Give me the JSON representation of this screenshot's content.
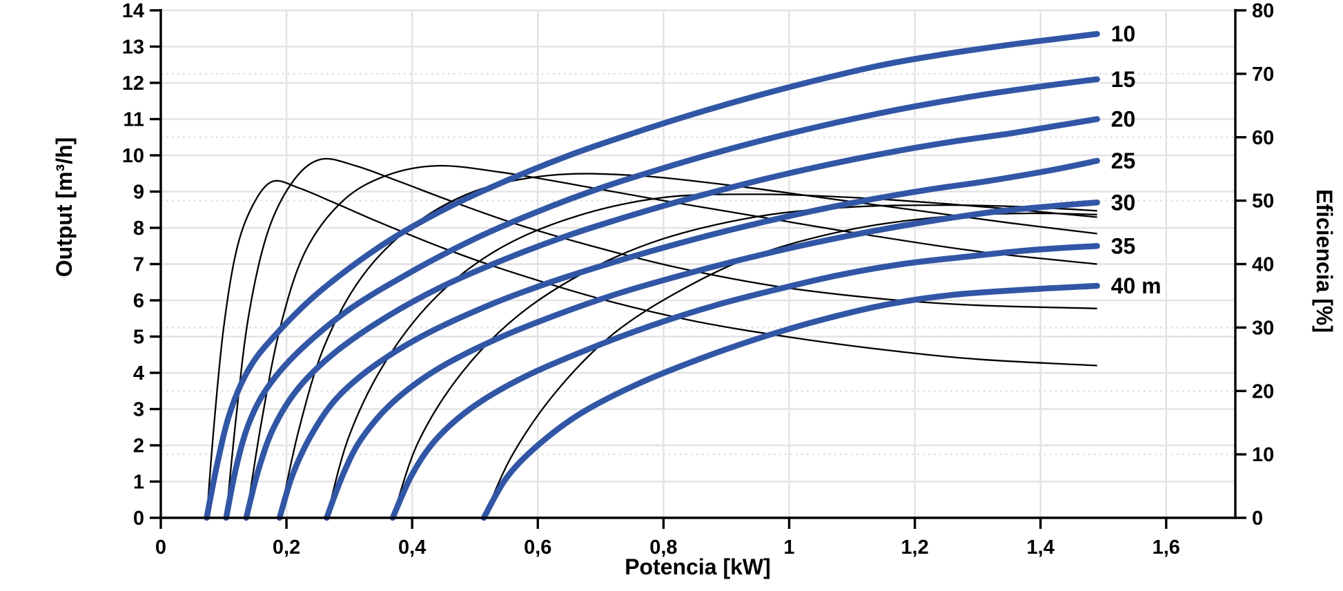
{
  "chart_data": {
    "type": "line",
    "xlabel": "Potencia [kW]",
    "ylabel_left": "Output [m³/h]",
    "ylabel_right": "Eficiencia [%]",
    "xlim": [
      0,
      1.71
    ],
    "ylim_left": [
      0,
      14
    ],
    "ylim_right": [
      0,
      80
    ],
    "grid": "on",
    "decimal_separator": ",",
    "x_ticks": [
      {
        "v": 0.0,
        "label": "0"
      },
      {
        "v": 0.2,
        "label": "0,2"
      },
      {
        "v": 0.4,
        "label": "0,4"
      },
      {
        "v": 0.6,
        "label": "0,6"
      },
      {
        "v": 0.8,
        "label": "0,8"
      },
      {
        "v": 1.0,
        "label": "1"
      },
      {
        "v": 1.2,
        "label": "1,2"
      },
      {
        "v": 1.4,
        "label": "1,4"
      },
      {
        "v": 1.6,
        "label": "1,6"
      }
    ],
    "y_ticks_left": [
      {
        "v": 0,
        "label": "0"
      },
      {
        "v": 1,
        "label": "1"
      },
      {
        "v": 2,
        "label": "2"
      },
      {
        "v": 3,
        "label": "3"
      },
      {
        "v": 4,
        "label": "4"
      },
      {
        "v": 5,
        "label": "5"
      },
      {
        "v": 6,
        "label": "6"
      },
      {
        "v": 7,
        "label": "7"
      },
      {
        "v": 8,
        "label": "8"
      },
      {
        "v": 9,
        "label": "9"
      },
      {
        "v": 10,
        "label": "10"
      },
      {
        "v": 11,
        "label": "11"
      },
      {
        "v": 12,
        "label": "12"
      },
      {
        "v": 13,
        "label": "13"
      },
      {
        "v": 14,
        "label": "14"
      }
    ],
    "y_ticks_right": [
      {
        "v": 0,
        "label": "0"
      },
      {
        "v": 10,
        "label": "10"
      },
      {
        "v": 20,
        "label": "20"
      },
      {
        "v": 30,
        "label": "30"
      },
      {
        "v": 40,
        "label": "40"
      },
      {
        "v": 50,
        "label": "50"
      },
      {
        "v": 60,
        "label": "60"
      },
      {
        "v": 70,
        "label": "70"
      },
      {
        "v": 80,
        "label": "80"
      }
    ],
    "colors": {
      "power_curve": "#3156a5",
      "efficiency_curve": "#000000",
      "grid_solid": "#e3e3e3",
      "grid_dotted": "#dedede",
      "axis": "#000000"
    },
    "power_curves": [
      {
        "label": "10",
        "head_m": 10,
        "points": [
          [
            0.073,
            0
          ],
          [
            0.09,
            1.5
          ],
          [
            0.11,
            2.9
          ],
          [
            0.14,
            4.1
          ],
          [
            0.18,
            5.0
          ],
          [
            0.25,
            6.2
          ],
          [
            0.35,
            7.5
          ],
          [
            0.45,
            8.5
          ],
          [
            0.55,
            9.3
          ],
          [
            0.65,
            10.0
          ],
          [
            0.75,
            10.6
          ],
          [
            0.85,
            11.15
          ],
          [
            0.95,
            11.65
          ],
          [
            1.05,
            12.1
          ],
          [
            1.15,
            12.5
          ],
          [
            1.25,
            12.8
          ],
          [
            1.35,
            13.05
          ],
          [
            1.42,
            13.2
          ],
          [
            1.49,
            13.35
          ]
        ]
      },
      {
        "label": "15",
        "head_m": 15,
        "points": [
          [
            0.104,
            0
          ],
          [
            0.12,
            1.4
          ],
          [
            0.14,
            2.6
          ],
          [
            0.17,
            3.6
          ],
          [
            0.22,
            4.6
          ],
          [
            0.3,
            5.75
          ],
          [
            0.4,
            6.8
          ],
          [
            0.5,
            7.7
          ],
          [
            0.6,
            8.45
          ],
          [
            0.7,
            9.1
          ],
          [
            0.8,
            9.65
          ],
          [
            0.9,
            10.15
          ],
          [
            1.0,
            10.6
          ],
          [
            1.1,
            11.0
          ],
          [
            1.2,
            11.35
          ],
          [
            1.3,
            11.65
          ],
          [
            1.4,
            11.9
          ],
          [
            1.49,
            12.1
          ]
        ]
      },
      {
        "label": "20",
        "head_m": 20,
        "points": [
          [
            0.136,
            0
          ],
          [
            0.155,
            1.3
          ],
          [
            0.18,
            2.5
          ],
          [
            0.22,
            3.6
          ],
          [
            0.28,
            4.6
          ],
          [
            0.36,
            5.55
          ],
          [
            0.45,
            6.4
          ],
          [
            0.55,
            7.15
          ],
          [
            0.65,
            7.8
          ],
          [
            0.75,
            8.35
          ],
          [
            0.85,
            8.85
          ],
          [
            0.95,
            9.3
          ],
          [
            1.05,
            9.7
          ],
          [
            1.15,
            10.05
          ],
          [
            1.25,
            10.35
          ],
          [
            1.35,
            10.6
          ],
          [
            1.42,
            10.8
          ],
          [
            1.49,
            11.0
          ]
        ]
      },
      {
        "label": "25",
        "head_m": 25,
        "points": [
          [
            0.189,
            0
          ],
          [
            0.21,
            1.2
          ],
          [
            0.24,
            2.3
          ],
          [
            0.28,
            3.3
          ],
          [
            0.34,
            4.2
          ],
          [
            0.42,
            5.05
          ],
          [
            0.52,
            5.85
          ],
          [
            0.62,
            6.5
          ],
          [
            0.72,
            7.05
          ],
          [
            0.82,
            7.55
          ],
          [
            0.92,
            8.0
          ],
          [
            1.02,
            8.4
          ],
          [
            1.12,
            8.75
          ],
          [
            1.22,
            9.05
          ],
          [
            1.32,
            9.3
          ],
          [
            1.42,
            9.6
          ],
          [
            1.49,
            9.85
          ]
        ]
      },
      {
        "label": "30",
        "head_m": 30,
        "points": [
          [
            0.264,
            0
          ],
          [
            0.29,
            1.2
          ],
          [
            0.32,
            2.2
          ],
          [
            0.37,
            3.2
          ],
          [
            0.44,
            4.1
          ],
          [
            0.53,
            4.9
          ],
          [
            0.63,
            5.6
          ],
          [
            0.73,
            6.2
          ],
          [
            0.83,
            6.7
          ],
          [
            0.93,
            7.15
          ],
          [
            1.03,
            7.55
          ],
          [
            1.13,
            7.9
          ],
          [
            1.23,
            8.2
          ],
          [
            1.33,
            8.45
          ],
          [
            1.42,
            8.6
          ],
          [
            1.49,
            8.7
          ]
        ]
      },
      {
        "label": "35",
        "head_m": 35,
        "points": [
          [
            0.369,
            0
          ],
          [
            0.4,
            1.2
          ],
          [
            0.44,
            2.2
          ],
          [
            0.5,
            3.1
          ],
          [
            0.58,
            3.9
          ],
          [
            0.68,
            4.65
          ],
          [
            0.78,
            5.3
          ],
          [
            0.88,
            5.85
          ],
          [
            0.98,
            6.3
          ],
          [
            1.08,
            6.7
          ],
          [
            1.18,
            7.0
          ],
          [
            1.28,
            7.2
          ],
          [
            1.38,
            7.38
          ],
          [
            1.49,
            7.5
          ]
        ]
      },
      {
        "label": "40 m",
        "head_m": 40,
        "points": [
          [
            0.514,
            0
          ],
          [
            0.55,
            1.1
          ],
          [
            0.6,
            2.0
          ],
          [
            0.67,
            2.9
          ],
          [
            0.76,
            3.7
          ],
          [
            0.86,
            4.4
          ],
          [
            0.96,
            5.0
          ],
          [
            1.06,
            5.5
          ],
          [
            1.16,
            5.9
          ],
          [
            1.26,
            6.15
          ],
          [
            1.38,
            6.3
          ],
          [
            1.49,
            6.4
          ]
        ]
      }
    ],
    "efficiency_curves": [
      {
        "head_m": 10,
        "points": [
          [
            0.073,
            0
          ],
          [
            0.085,
            15
          ],
          [
            0.1,
            30
          ],
          [
            0.12,
            42
          ],
          [
            0.145,
            49
          ],
          [
            0.177,
            53
          ],
          [
            0.22,
            52
          ],
          [
            0.28,
            49.5
          ],
          [
            0.35,
            46.5
          ],
          [
            0.45,
            42.5
          ],
          [
            0.55,
            39
          ],
          [
            0.7,
            34.5
          ],
          [
            0.85,
            31
          ],
          [
            1.0,
            28.5
          ],
          [
            1.15,
            26.5
          ],
          [
            1.3,
            25
          ],
          [
            1.49,
            24
          ]
        ]
      },
      {
        "head_m": 15,
        "points": [
          [
            0.104,
            0
          ],
          [
            0.12,
            16
          ],
          [
            0.14,
            32
          ],
          [
            0.17,
            45
          ],
          [
            0.21,
            53
          ],
          [
            0.254,
            56.5
          ],
          [
            0.31,
            55.5
          ],
          [
            0.38,
            53
          ],
          [
            0.46,
            50
          ],
          [
            0.56,
            46.5
          ],
          [
            0.68,
            43
          ],
          [
            0.82,
            39.5
          ],
          [
            0.98,
            36.5
          ],
          [
            1.15,
            34.5
          ],
          [
            1.3,
            33.5
          ],
          [
            1.49,
            33
          ]
        ]
      },
      {
        "head_m": 20,
        "points": [
          [
            0.136,
            0
          ],
          [
            0.16,
            15
          ],
          [
            0.19,
            30
          ],
          [
            0.23,
            42
          ],
          [
            0.29,
            50
          ],
          [
            0.36,
            54
          ],
          [
            0.44,
            55.5
          ],
          [
            0.54,
            54.5
          ],
          [
            0.66,
            52.5
          ],
          [
            0.8,
            50
          ],
          [
            0.95,
            47.5
          ],
          [
            1.1,
            45
          ],
          [
            1.3,
            42
          ],
          [
            1.49,
            40
          ]
        ]
      },
      {
        "head_m": 25,
        "points": [
          [
            0.189,
            0
          ],
          [
            0.22,
            14
          ],
          [
            0.26,
            27
          ],
          [
            0.32,
            38
          ],
          [
            0.4,
            46
          ],
          [
            0.5,
            51.5
          ],
          [
            0.62,
            54
          ],
          [
            0.75,
            54
          ],
          [
            0.9,
            52.5
          ],
          [
            1.05,
            50.5
          ],
          [
            1.2,
            48.5
          ],
          [
            1.35,
            46.5
          ],
          [
            1.49,
            44.8
          ]
        ]
      },
      {
        "head_m": 30,
        "points": [
          [
            0.264,
            0
          ],
          [
            0.3,
            13
          ],
          [
            0.36,
            25
          ],
          [
            0.44,
            35
          ],
          [
            0.54,
            42.5
          ],
          [
            0.66,
            47.5
          ],
          [
            0.8,
            50.5
          ],
          [
            0.95,
            51
          ],
          [
            1.1,
            50.5
          ],
          [
            1.25,
            49.5
          ],
          [
            1.37,
            48.5
          ],
          [
            1.49,
            47.4
          ]
        ]
      },
      {
        "head_m": 35,
        "points": [
          [
            0.369,
            0
          ],
          [
            0.41,
            12
          ],
          [
            0.48,
            23
          ],
          [
            0.57,
            32
          ],
          [
            0.68,
            39
          ],
          [
            0.8,
            44
          ],
          [
            0.95,
            47.5
          ],
          [
            1.1,
            49
          ],
          [
            1.25,
            49.3
          ],
          [
            1.38,
            49
          ],
          [
            1.49,
            48.4
          ]
        ]
      },
      {
        "head_m": 40,
        "points": [
          [
            0.514,
            0
          ],
          [
            0.56,
            10
          ],
          [
            0.63,
            20
          ],
          [
            0.72,
            29
          ],
          [
            0.83,
            36
          ],
          [
            0.95,
            41.5
          ],
          [
            1.1,
            45.5
          ],
          [
            1.25,
            47.5
          ],
          [
            1.38,
            48
          ],
          [
            1.49,
            47.8
          ]
        ]
      }
    ]
  }
}
